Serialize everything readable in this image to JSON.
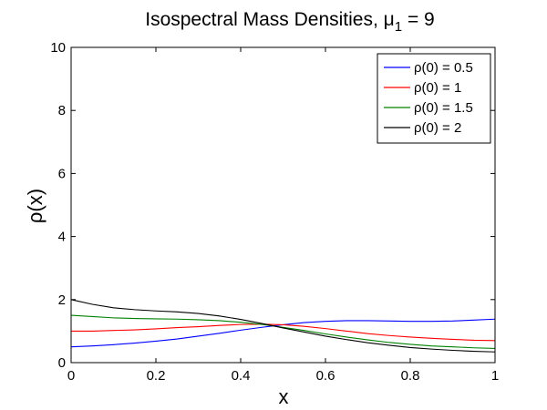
{
  "chart_data": {
    "type": "line",
    "title_main": "Isospectral Mass Densities, ",
    "title_symbol": "μ",
    "title_subscript": "1",
    "title_tail": " = 9",
    "xlabel": "x",
    "ylabel": "ρ(x)",
    "xlim": [
      0,
      1
    ],
    "ylim": [
      0,
      10
    ],
    "xticks": [
      0,
      0.2,
      0.4,
      0.6,
      0.8,
      1
    ],
    "xtick_labels": [
      "0",
      "0.2",
      "0.4",
      "0.6",
      "0.8",
      "1"
    ],
    "yticks": [
      0,
      2,
      4,
      6,
      8,
      10
    ],
    "ytick_labels": [
      "0",
      "2",
      "4",
      "6",
      "8",
      "10"
    ],
    "grid": false,
    "legend_position": "top-right",
    "x": [
      0,
      0.05,
      0.1,
      0.15,
      0.2,
      0.25,
      0.3,
      0.35,
      0.4,
      0.45,
      0.5,
      0.55,
      0.6,
      0.65,
      0.7,
      0.75,
      0.8,
      0.85,
      0.9,
      0.95,
      1.0
    ],
    "series": [
      {
        "name": "ρ(0) = 0.5",
        "color": "#0000ff",
        "values": [
          0.5,
          0.53,
          0.57,
          0.62,
          0.68,
          0.75,
          0.84,
          0.93,
          1.03,
          1.12,
          1.2,
          1.27,
          1.31,
          1.33,
          1.33,
          1.32,
          1.31,
          1.31,
          1.32,
          1.35,
          1.38
        ]
      },
      {
        "name": "ρ(0) = 1",
        "color": "#ff0000",
        "values": [
          1.0,
          1.0,
          1.02,
          1.04,
          1.07,
          1.11,
          1.14,
          1.18,
          1.21,
          1.22,
          1.2,
          1.15,
          1.08,
          1.0,
          0.92,
          0.86,
          0.81,
          0.77,
          0.74,
          0.71,
          0.7
        ]
      },
      {
        "name": "ρ(0) = 1.5",
        "color": "#008000",
        "values": [
          1.5,
          1.46,
          1.42,
          1.4,
          1.39,
          1.38,
          1.36,
          1.33,
          1.28,
          1.21,
          1.12,
          1.02,
          0.91,
          0.81,
          0.72,
          0.64,
          0.58,
          0.53,
          0.5,
          0.47,
          0.45
        ]
      },
      {
        "name": "ρ(0) = 2",
        "color": "#000000",
        "values": [
          2.0,
          1.85,
          1.74,
          1.68,
          1.64,
          1.61,
          1.56,
          1.48,
          1.37,
          1.24,
          1.1,
          0.97,
          0.84,
          0.73,
          0.63,
          0.55,
          0.48,
          0.43,
          0.39,
          0.36,
          0.34
        ]
      }
    ]
  }
}
